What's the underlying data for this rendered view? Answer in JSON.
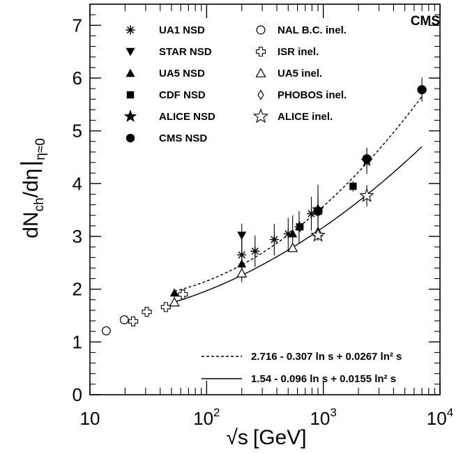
{
  "chart_data": {
    "type": "scatter",
    "xscale": "log",
    "xlim": [
      10,
      10000
    ],
    "ylim": [
      0,
      7.4
    ],
    "grid": false,
    "badge": "CMS",
    "xlabel": {
      "root": "√s",
      "unit": "[GeV]"
    },
    "ylabel": {
      "main": "dN",
      "sub_ch": "ch",
      "slash": "/dη",
      "bar": "|",
      "sub_eta": "η≈0"
    },
    "x_ticks": [
      {
        "value": 10,
        "base": "10",
        "exp": ""
      },
      {
        "value": 100,
        "base": "10",
        "exp": "2"
      },
      {
        "value": 1000,
        "base": "10",
        "exp": "3"
      },
      {
        "value": 10000,
        "base": "10",
        "exp": "4"
      }
    ],
    "y_ticks": [
      "0",
      "1",
      "2",
      "3",
      "4",
      "5",
      "6",
      "7"
    ],
    "legend": [
      {
        "label": "UA1 NSD",
        "marker": "asterisk"
      },
      {
        "label": "STAR NSD",
        "marker": "triangle-down"
      },
      {
        "label": "UA5 NSD",
        "marker": "triangle-up"
      },
      {
        "label": "CDF NSD",
        "marker": "square"
      },
      {
        "label": "ALICE NSD",
        "marker": "star"
      },
      {
        "label": "CMS NSD",
        "marker": "circle"
      },
      {
        "label": "NAL B.C. inel.",
        "marker": "circle-open"
      },
      {
        "label": "ISR inel.",
        "marker": "cross-open"
      },
      {
        "label": "UA5 inel.",
        "marker": "triangle-up-open"
      },
      {
        "label": "PHOBOS inel.",
        "marker": "diamond-open"
      },
      {
        "label": "ALICE inel.",
        "marker": "star-open"
      }
    ],
    "series": [
      {
        "name": "UA1 NSD",
        "marker": "asterisk",
        "points": [
          {
            "x": 200,
            "y": 2.65,
            "err": 0.3
          },
          {
            "x": 260,
            "y": 2.72,
            "err": 0.3
          },
          {
            "x": 380,
            "y": 2.94,
            "err": 0.3
          },
          {
            "x": 500,
            "y": 3.05,
            "err": 0.3
          },
          {
            "x": 620,
            "y": 3.18,
            "err": 0.3
          },
          {
            "x": 790,
            "y": 3.43,
            "err": 0.32
          },
          {
            "x": 900,
            "y": 3.48,
            "err": 0.32
          }
        ]
      },
      {
        "name": "STAR NSD",
        "marker": "triangle-down",
        "points": [
          {
            "x": 200,
            "y": 3.02,
            "err": 0.22
          }
        ]
      },
      {
        "name": "UA5 NSD",
        "marker": "triangle-up",
        "points": [
          {
            "x": 53,
            "y": 1.93,
            "err": 0.08
          },
          {
            "x": 200,
            "y": 2.48,
            "err": 0.35
          },
          {
            "x": 546,
            "y": 3.05,
            "err": 0.35
          },
          {
            "x": 900,
            "y": 3.48,
            "err": 0.5
          }
        ]
      },
      {
        "name": "CDF NSD",
        "marker": "square",
        "points": [
          {
            "x": 630,
            "y": 3.18,
            "err": 0.1
          },
          {
            "x": 1800,
            "y": 3.95,
            "err": 0.1
          }
        ]
      },
      {
        "name": "ALICE NSD",
        "marker": "star",
        "points": [
          {
            "x": 900,
            "y": 3.51,
            "err": 0.25
          },
          {
            "x": 2360,
            "y": 4.43,
            "err": 0.25
          }
        ]
      },
      {
        "name": "CMS NSD",
        "marker": "circle",
        "points": [
          {
            "x": 900,
            "y": 3.48,
            "err": 0.13
          },
          {
            "x": 2360,
            "y": 4.47,
            "err": 0.16
          },
          {
            "x": 7000,
            "y": 5.78,
            "err": 0.23
          }
        ]
      },
      {
        "name": "NAL B.C. inel.",
        "marker": "circle-open",
        "points": [
          {
            "x": 13.8,
            "y": 1.21,
            "err": 0
          },
          {
            "x": 19.7,
            "y": 1.42,
            "err": 0
          }
        ]
      },
      {
        "name": "ISR inel.",
        "marker": "cross-open",
        "points": [
          {
            "x": 23.5,
            "y": 1.39,
            "err": 0
          },
          {
            "x": 30.7,
            "y": 1.57,
            "err": 0
          },
          {
            "x": 44.7,
            "y": 1.66,
            "err": 0
          },
          {
            "x": 62.7,
            "y": 1.9,
            "err": 0
          }
        ]
      },
      {
        "name": "UA5 inel.",
        "marker": "triangle-up-open",
        "points": [
          {
            "x": 53,
            "y": 1.75,
            "err": 0
          },
          {
            "x": 200,
            "y": 2.3,
            "err": 0
          },
          {
            "x": 546,
            "y": 2.78,
            "err": 0
          },
          {
            "x": 900,
            "y": 3.08,
            "err": 0
          }
        ]
      },
      {
        "name": "PHOBOS inel.",
        "marker": "diamond-open",
        "points": []
      },
      {
        "name": "ALICE inel.",
        "marker": "star-open",
        "points": [
          {
            "x": 900,
            "y": 3.02,
            "err": 0.1
          },
          {
            "x": 2360,
            "y": 3.77,
            "err": 0.2
          }
        ]
      }
    ],
    "fits": [
      {
        "label": "2.716 - 0.307 ln s + 0.0267 ln² s",
        "style": "dashed",
        "x_range": [
          53,
          7000
        ],
        "coeffs": [
          2.716,
          -0.307,
          0.0267
        ]
      },
      {
        "label": "1.54 - 0.096 ln s + 0.0155 ln² s",
        "style": "solid",
        "x_range": [
          53,
          7000
        ],
        "coeffs": [
          1.54,
          -0.096,
          0.0155
        ]
      }
    ]
  }
}
